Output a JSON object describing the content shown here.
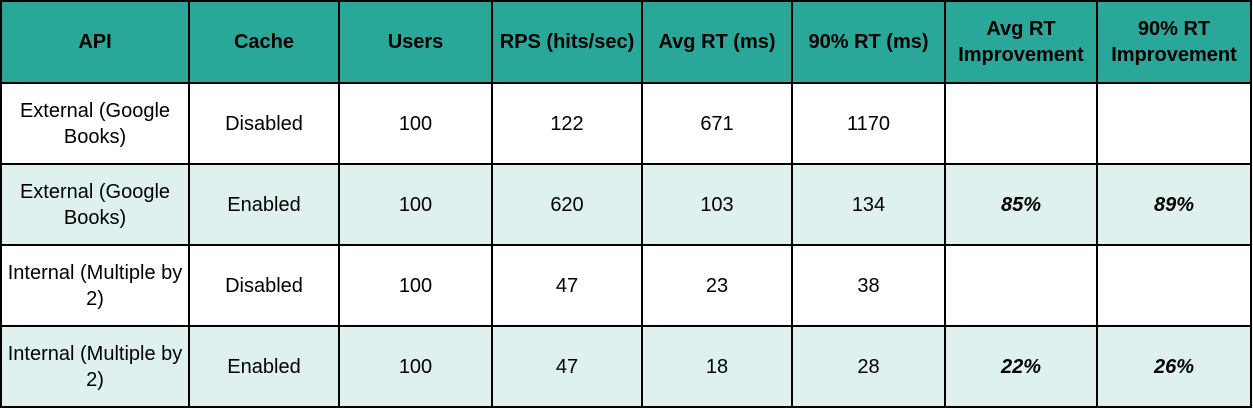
{
  "table": {
    "headers": [
      "API",
      "Cache",
      "Users",
      "RPS (hits/sec)",
      "Avg RT (ms)",
      "90% RT (ms)",
      "Avg RT Improvement",
      "90% RT Improvement"
    ],
    "rows": [
      [
        "External (Google Books)",
        "Disabled",
        "100",
        "122",
        "671",
        "1170",
        "",
        ""
      ],
      [
        "External (Google Books)",
        "Enabled",
        "100",
        "620",
        "103",
        "134",
        "85%",
        "89%"
      ],
      [
        "Internal (Multiple by 2)",
        "Disabled",
        "100",
        "47",
        "23",
        "38",
        "",
        ""
      ],
      [
        "Internal (Multiple by 2)",
        "Enabled",
        "100",
        "47",
        "18",
        "28",
        "22%",
        "26%"
      ]
    ]
  },
  "colors": {
    "header_bg": "#29a89a",
    "alt_row_bg": "#dff1ef",
    "border": "#000000"
  }
}
